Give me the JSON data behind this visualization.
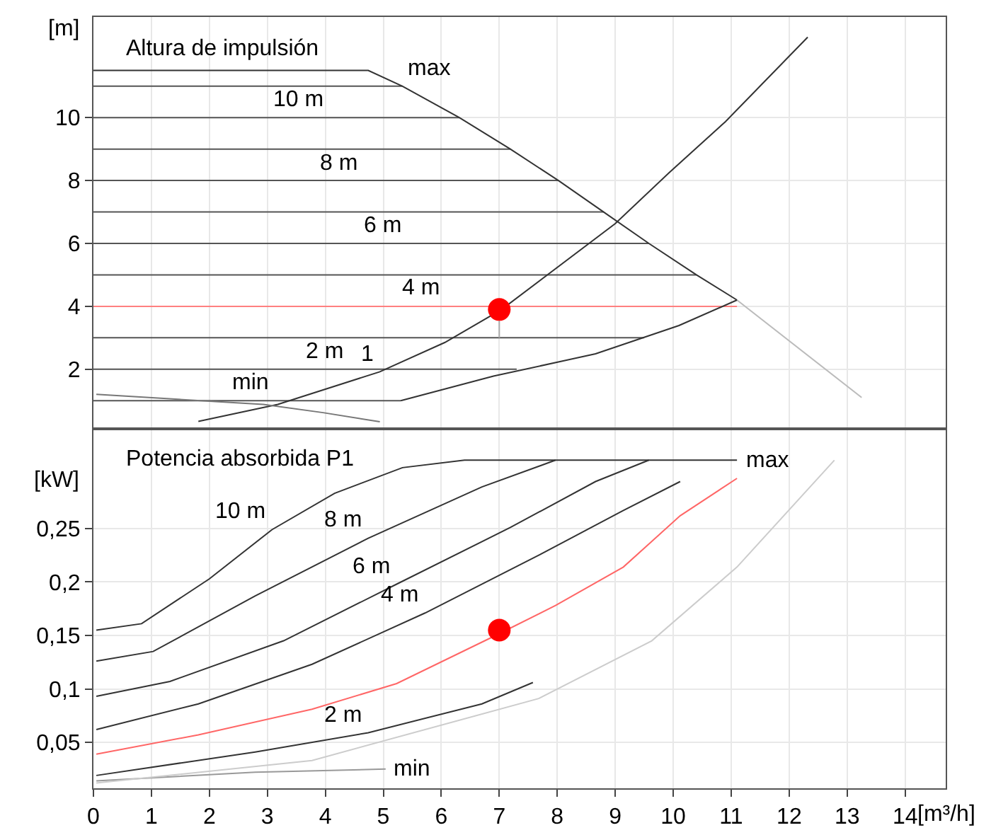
{
  "chart_data": [
    {
      "type": "line",
      "title": "Altura de impulsión",
      "ylabel": "[m]",
      "xlim": [
        0,
        14.7
      ],
      "ylim": [
        0.15,
        13.2
      ],
      "xticks": [
        0,
        1,
        2,
        3,
        4,
        5,
        6,
        7,
        8,
        9,
        10,
        11,
        12,
        13,
        14
      ],
      "yticks": [
        2,
        4,
        6,
        8,
        10
      ],
      "grid": true,
      "tick_labels": "y",
      "series": [
        {
          "color": "#555555",
          "x": [
            0,
            5.33
          ],
          "values": [
            11,
            11
          ]
        },
        {
          "color": "#555555",
          "x": [
            0,
            6.31
          ],
          "values": [
            10,
            10
          ]
        },
        {
          "color": "#555555",
          "x": [
            0,
            7.19
          ],
          "values": [
            9,
            9
          ]
        },
        {
          "color": "#555555",
          "x": [
            0,
            8.02
          ],
          "values": [
            8,
            8
          ]
        },
        {
          "color": "#555555",
          "x": [
            0,
            8.8
          ],
          "values": [
            7,
            7
          ]
        },
        {
          "color": "#555555",
          "x": [
            0,
            9.58
          ],
          "values": [
            6,
            6
          ]
        },
        {
          "color": "#555555",
          "x": [
            0,
            10.4
          ],
          "values": [
            5,
            5
          ]
        },
        {
          "color": "#ff8080",
          "x": [
            0,
            11.1
          ],
          "values": [
            4,
            4
          ]
        },
        {
          "color": "#555555",
          "x": [
            0,
            9.5
          ],
          "values": [
            3,
            3
          ]
        },
        {
          "color": "#555555",
          "x": [
            0,
            7.3
          ],
          "values": [
            2,
            2
          ]
        },
        {
          "color": "#555555",
          "x": [
            0,
            5.3
          ],
          "values": [
            1,
            1
          ]
        },
        {
          "color": "#333333",
          "x": [
            0,
            4.74,
            5.33,
            6.31,
            7.19,
            8.02,
            8.8,
            9.58,
            10.4,
            11.1
          ],
          "values": [
            11.5,
            11.5,
            11,
            10,
            9,
            8,
            7,
            6,
            5,
            4.2
          ]
        },
        {
          "color": "#bbbbbb",
          "x": [
            11.1,
            13.25
          ],
          "values": [
            4.2,
            1.1
          ]
        },
        {
          "color": "#333333",
          "x": [
            5.3,
            6.9,
            8.66,
            10.1,
            11.1
          ],
          "values": [
            1,
            1.78,
            2.49,
            3.39,
            4.2
          ]
        },
        {
          "color": "#333333",
          "x": [
            1.81,
            3.18,
            4.94,
            6.06,
            7.04,
            9.0,
            9.93,
            10.9,
            12.32
          ],
          "values": [
            0.34,
            0.88,
            1.92,
            2.85,
            3.9,
            6.63,
            8.25,
            9.87,
            12.56
          ]
        },
        {
          "color": "#777777",
          "x": [
            0.05,
            2.93,
            3.96,
            4.94
          ],
          "values": [
            1.2,
            0.88,
            0.62,
            0.33
          ]
        },
        {
          "color": "#aaaaaa",
          "x": [
            7,
            7
          ],
          "values": [
            3.9,
            3.0
          ]
        },
        {
          "type": "scatter",
          "color": "#ff0000",
          "x": [
            7
          ],
          "values": [
            3.9
          ]
        }
      ],
      "annotations": [
        {
          "text": "max",
          "x": 5.33,
          "y": 11
        },
        {
          "text": "10 m",
          "x": 3.0,
          "y": 10
        },
        {
          "text": "8 m",
          "x": 3.81,
          "y": 8
        },
        {
          "text": "6 m",
          "x": 4.57,
          "y": 6
        },
        {
          "text": "4 m",
          "x": 5.23,
          "y": 4
        },
        {
          "text": "2 m",
          "x": 3.57,
          "y": 2
        },
        {
          "text": "1",
          "x": 4.94,
          "y": 1.92
        },
        {
          "text": "min",
          "x": 2.3,
          "y": 1
        }
      ]
    },
    {
      "type": "line",
      "title": "Potencia absorbida P1",
      "ylabel": "[kW]",
      "xlabel": "[m³/h]",
      "xlim": [
        0,
        14.7
      ],
      "ylim": [
        0.007,
        0.342
      ],
      "xticks": [
        0,
        1,
        2,
        3,
        4,
        5,
        6,
        7,
        8,
        9,
        10,
        11,
        12,
        13,
        14
      ],
      "yticks": [
        {
          "value": 0.05,
          "label": "0,05"
        },
        {
          "value": 0.1,
          "label": "0,1"
        },
        {
          "value": 0.15,
          "label": "0,15"
        },
        {
          "value": 0.2,
          "label": "0,2"
        },
        {
          "value": 0.25,
          "label": "0,25"
        }
      ],
      "grid": true,
      "series": [
        {
          "color": "#333333",
          "x": [
            0.05,
            0.83,
            2.0,
            3.08,
            4.16,
            5.33,
            6.4,
            11.1
          ],
          "values": [
            0.155,
            0.161,
            0.203,
            0.249,
            0.283,
            0.307,
            0.314,
            0.314
          ]
        },
        {
          "color": "#333333",
          "x": [
            0.05,
            1.03,
            2.79,
            4.74,
            6.7,
            7.97
          ],
          "values": [
            0.126,
            0.135,
            0.187,
            0.241,
            0.289,
            0.314
          ]
        },
        {
          "color": "#333333",
          "x": [
            0.05,
            1.32,
            3.28,
            5.23,
            7.19,
            8.66,
            9.58
          ],
          "values": [
            0.093,
            0.107,
            0.145,
            0.198,
            0.251,
            0.294,
            0.314
          ]
        },
        {
          "color": "#333333",
          "x": [
            0.05,
            1.81,
            3.77,
            5.72,
            7.68,
            9.14,
            10.12
          ],
          "values": [
            0.062,
            0.086,
            0.123,
            0.171,
            0.225,
            0.267,
            0.294
          ]
        },
        {
          "color": "#ff6666",
          "x": [
            0.05,
            1.81,
            3.77,
            5.23,
            6.9,
            7.97,
            9.14,
            10.12,
            11.1
          ],
          "values": [
            0.039,
            0.057,
            0.081,
            0.105,
            0.149,
            0.178,
            0.214,
            0.262,
            0.297
          ]
        },
        {
          "color": "#333333",
          "x": [
            0.05,
            2.79,
            4.74,
            6.7,
            7.58
          ],
          "values": [
            0.019,
            0.041,
            0.059,
            0.086,
            0.106
          ]
        },
        {
          "color": "#999999",
          "x": [
            0.05,
            2.79,
            5.04
          ],
          "values": [
            0.014,
            0.022,
            0.025
          ]
        },
        {
          "color": "#cccccc",
          "x": [
            0.05,
            3.77,
            7.68,
            9.63,
            11.1,
            12.78
          ],
          "values": [
            0.012,
            0.033,
            0.091,
            0.145,
            0.214,
            0.314
          ]
        },
        {
          "type": "scatter",
          "color": "#ff0000",
          "x": [
            7
          ],
          "values": [
            0.155
          ]
        }
      ],
      "annotations": [
        {
          "text": "max",
          "x": 11.1,
          "y": 0.314
        },
        {
          "text": "10 m",
          "x": 3.08,
          "y": 0.249
        },
        {
          "text": "8 m",
          "x": 4.74,
          "y": 0.241
        },
        {
          "text": "6 m",
          "x": 5.23,
          "y": 0.198
        },
        {
          "text": "4 m",
          "x": 5.72,
          "y": 0.171
        },
        {
          "text": "2 m",
          "x": 4.74,
          "y": 0.059
        },
        {
          "text": "min",
          "x": 5.04,
          "y": 0.025
        }
      ]
    }
  ]
}
